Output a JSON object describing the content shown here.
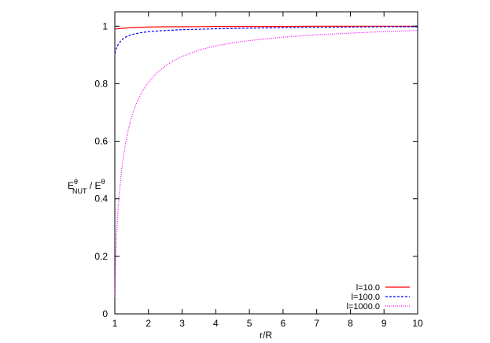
{
  "chart_data": {
    "type": "line",
    "xlabel": "r/R",
    "ylabel": {
      "main": "E",
      "sup1": "θ",
      "sub": "NUT",
      "sep": " / E",
      "sup2": "θ"
    },
    "xlim": [
      1,
      10
    ],
    "ylim": [
      0,
      1.05
    ],
    "x_ticks": [
      1,
      2,
      3,
      4,
      5,
      6,
      7,
      8,
      9,
      10
    ],
    "y_ticks": [
      0,
      0.2,
      0.4,
      0.6,
      0.8,
      1
    ],
    "x_tick_labels": [
      "1",
      "2",
      "3",
      "4",
      "5",
      "6",
      "7",
      "8",
      "9",
      "10"
    ],
    "y_tick_labels": [
      "0",
      "0.2",
      "0.4",
      "0.6",
      "0.8",
      "1"
    ],
    "grid": false,
    "legend_position": "bottom-right",
    "series": [
      {
        "name": "l=10.0",
        "color": "#ff0000",
        "dash": "solid",
        "x": [
          1.0,
          1.25,
          1.5,
          2.0,
          2.5,
          3.0,
          4.0,
          5.0,
          6.0,
          7.0,
          8.0,
          9.0,
          10.0
        ],
        "y": [
          0.99,
          0.993,
          0.995,
          0.997,
          0.998,
          0.998,
          0.999,
          0.999,
          0.999,
          1.0,
          1.0,
          1.0,
          1.0
        ]
      },
      {
        "name": "l=100.0",
        "color": "#0000ff",
        "dash": "dashed",
        "x": [
          1.0,
          1.05,
          1.1,
          1.2,
          1.3,
          1.5,
          1.75,
          2.0,
          2.5,
          3.0,
          4.0,
          5.0,
          6.0,
          7.0,
          8.0,
          9.0,
          10.0
        ],
        "y": [
          0.905,
          0.924,
          0.937,
          0.952,
          0.961,
          0.971,
          0.977,
          0.981,
          0.985,
          0.988,
          0.991,
          0.993,
          0.995,
          0.996,
          0.997,
          0.998,
          0.998
        ]
      },
      {
        "name": "l=1000.0",
        "color": "#ff00ff",
        "dash": "dotted",
        "x": [
          1.0,
          1.02,
          1.05,
          1.1,
          1.15,
          1.2,
          1.3,
          1.4,
          1.5,
          1.6,
          1.8,
          2.0,
          2.25,
          2.5,
          2.75,
          3.0,
          3.5,
          4.0,
          4.5,
          5.0,
          6.0,
          7.0,
          8.0,
          9.0,
          10.0
        ],
        "y": [
          0.06,
          0.17,
          0.27,
          0.37,
          0.44,
          0.5,
          0.58,
          0.64,
          0.685,
          0.72,
          0.77,
          0.805,
          0.838,
          0.862,
          0.88,
          0.895,
          0.917,
          0.932,
          0.942,
          0.95,
          0.962,
          0.97,
          0.976,
          0.981,
          0.985
        ]
      }
    ]
  }
}
